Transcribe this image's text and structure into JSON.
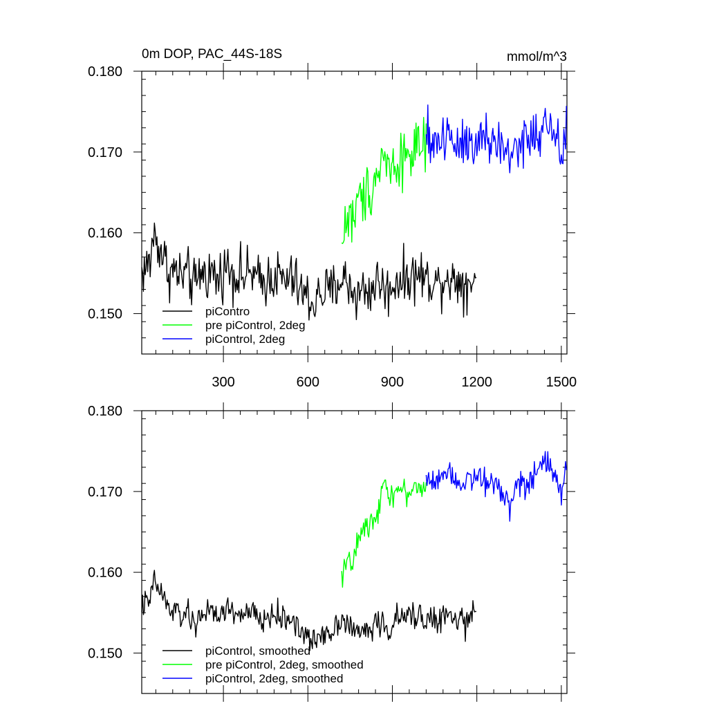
{
  "chart_data": [
    {
      "type": "line",
      "title": "0m DOP, PAC_44S-18S",
      "units": "mmol/m^3",
      "xlim": [
        10,
        1520
      ],
      "ylim": [
        0.145,
        0.18
      ],
      "x_ticks": [
        300,
        600,
        900,
        1200,
        1500
      ],
      "x_tick_labels": [
        "300",
        "600",
        "900",
        "1200",
        "1500"
      ],
      "y_ticks": [
        0.15,
        0.16,
        0.17,
        0.18
      ],
      "y_tick_labels": [
        "0.150",
        "0.160",
        "0.170",
        "0.180"
      ],
      "legend_position": "bottom-left",
      "series": [
        {
          "name": "piContro",
          "color": "#000000",
          "x_range": [
            10,
            1200
          ],
          "points": [
            [
              10,
              0.1552
            ],
            [
              40,
              0.1562
            ],
            [
              50,
              0.1598
            ],
            [
              70,
              0.1585
            ],
            [
              90,
              0.1568
            ],
            [
              110,
              0.155
            ],
            [
              130,
              0.1553
            ],
            [
              150,
              0.1545
            ],
            [
              170,
              0.155
            ],
            [
              190,
              0.1538
            ],
            [
              200,
              0.1532
            ],
            [
              220,
              0.1553
            ],
            [
              240,
              0.1548
            ],
            [
              260,
              0.1552
            ],
            [
              280,
              0.154
            ],
            [
              300,
              0.1555
            ],
            [
              320,
              0.1558
            ],
            [
              340,
              0.1548
            ],
            [
              360,
              0.155
            ],
            [
              380,
              0.1545
            ],
            [
              400,
              0.1552
            ],
            [
              420,
              0.154
            ],
            [
              440,
              0.1538
            ],
            [
              460,
              0.1545
            ],
            [
              480,
              0.1548
            ],
            [
              500,
              0.1545
            ],
            [
              520,
              0.1538
            ],
            [
              540,
              0.1545
            ],
            [
              560,
              0.1535
            ],
            [
              580,
              0.1525
            ],
            [
              600,
              0.152
            ],
            [
              620,
              0.1512
            ],
            [
              640,
              0.1522
            ],
            [
              660,
              0.1528
            ],
            [
              680,
              0.1525
            ],
            [
              700,
              0.1535
            ],
            [
              720,
              0.1545
            ],
            [
              740,
              0.1538
            ],
            [
              760,
              0.1528
            ],
            [
              780,
              0.1522
            ],
            [
              800,
              0.1532
            ],
            [
              820,
              0.1525
            ],
            [
              840,
              0.154
            ],
            [
              860,
              0.1538
            ],
            [
              880,
              0.1525
            ],
            [
              900,
              0.1535
            ],
            [
              920,
              0.1545
            ],
            [
              940,
              0.154
            ],
            [
              960,
              0.1548
            ],
            [
              980,
              0.1545
            ],
            [
              1000,
              0.155
            ],
            [
              1020,
              0.154
            ],
            [
              1040,
              0.1545
            ],
            [
              1060,
              0.1535
            ],
            [
              1080,
              0.1545
            ],
            [
              1100,
              0.1548
            ],
            [
              1120,
              0.1538
            ],
            [
              1140,
              0.1545
            ],
            [
              1160,
              0.1535
            ],
            [
              1180,
              0.1542
            ],
            [
              1200,
              0.1548
            ]
          ],
          "noise": 0.0028
        },
        {
          "name": "pre piControl, 2deg",
          "color": "#00ff00",
          "x_range": [
            720,
            1020
          ],
          "points": [
            [
              720,
              0.158
            ],
            [
              730,
              0.161
            ],
            [
              745,
              0.162
            ],
            [
              760,
              0.1615
            ],
            [
              775,
              0.1635
            ],
            [
              790,
              0.1642
            ],
            [
              810,
              0.1652
            ],
            [
              830,
              0.1662
            ],
            [
              850,
              0.1675
            ],
            [
              865,
              0.17
            ],
            [
              880,
              0.1685
            ],
            [
              900,
              0.168
            ],
            [
              920,
              0.169
            ],
            [
              940,
              0.1695
            ],
            [
              960,
              0.17
            ],
            [
              980,
              0.1705
            ],
            [
              1000,
              0.17
            ],
            [
              1020,
              0.1705
            ]
          ],
          "noise": 0.003
        },
        {
          "name": "piControl, 2deg",
          "color": "#0000ff",
          "x_range": [
            1020,
            1520
          ],
          "points": [
            [
              1020,
              0.1712
            ],
            [
              1060,
              0.1715
            ],
            [
              1100,
              0.172
            ],
            [
              1140,
              0.1712
            ],
            [
              1180,
              0.172
            ],
            [
              1220,
              0.1712
            ],
            [
              1260,
              0.1715
            ],
            [
              1300,
              0.17
            ],
            [
              1320,
              0.1695
            ],
            [
              1340,
              0.1712
            ],
            [
              1380,
              0.1712
            ],
            [
              1420,
              0.1722
            ],
            [
              1450,
              0.1735
            ],
            [
              1480,
              0.1708
            ],
            [
              1500,
              0.17
            ],
            [
              1520,
              0.1725
            ]
          ],
          "noise": 0.0032
        }
      ]
    },
    {
      "type": "line",
      "xlim": [
        10,
        1520
      ],
      "ylim": [
        0.145,
        0.18
      ],
      "x_ticks": [
        300,
        600,
        900,
        1200,
        1500
      ],
      "y_ticks": [
        0.15,
        0.16,
        0.17,
        0.18
      ],
      "y_tick_labels": [
        "0.150",
        "0.160",
        "0.170",
        "0.180"
      ],
      "legend_position": "bottom-left",
      "series": [
        {
          "name": "piControl, smoothed",
          "color": "#000000",
          "x_range": [
            10,
            1200
          ],
          "points": [
            [
              10,
              0.156
            ],
            [
              40,
              0.1562
            ],
            [
              50,
              0.159
            ],
            [
              70,
              0.158
            ],
            [
              90,
              0.1568
            ],
            [
              110,
              0.155
            ],
            [
              130,
              0.1553
            ],
            [
              150,
              0.1545
            ],
            [
              170,
              0.155
            ],
            [
              190,
              0.1538
            ],
            [
              200,
              0.153
            ],
            [
              220,
              0.1553
            ],
            [
              240,
              0.1548
            ],
            [
              260,
              0.1552
            ],
            [
              280,
              0.154
            ],
            [
              300,
              0.1555
            ],
            [
              320,
              0.1555
            ],
            [
              340,
              0.1548
            ],
            [
              360,
              0.155
            ],
            [
              380,
              0.1545
            ],
            [
              400,
              0.1552
            ],
            [
              420,
              0.1542
            ],
            [
              440,
              0.1538
            ],
            [
              460,
              0.1545
            ],
            [
              480,
              0.1548
            ],
            [
              500,
              0.1545
            ],
            [
              520,
              0.154
            ],
            [
              540,
              0.1545
            ],
            [
              560,
              0.1535
            ],
            [
              580,
              0.1525
            ],
            [
              600,
              0.1518
            ],
            [
              620,
              0.1512
            ],
            [
              640,
              0.1522
            ],
            [
              660,
              0.1528
            ],
            [
              680,
              0.1525
            ],
            [
              700,
              0.1535
            ],
            [
              720,
              0.1545
            ],
            [
              740,
              0.1538
            ],
            [
              760,
              0.1528
            ],
            [
              780,
              0.1522
            ],
            [
              800,
              0.1532
            ],
            [
              820,
              0.1525
            ],
            [
              840,
              0.154
            ],
            [
              860,
              0.1538
            ],
            [
              880,
              0.1525
            ],
            [
              900,
              0.1535
            ],
            [
              920,
              0.1545
            ],
            [
              940,
              0.154
            ],
            [
              960,
              0.1548
            ],
            [
              980,
              0.1545
            ],
            [
              1000,
              0.155
            ],
            [
              1020,
              0.154
            ],
            [
              1040,
              0.1545
            ],
            [
              1060,
              0.1535
            ],
            [
              1080,
              0.1545
            ],
            [
              1100,
              0.1548
            ],
            [
              1120,
              0.1538
            ],
            [
              1140,
              0.1545
            ],
            [
              1160,
              0.1535
            ],
            [
              1180,
              0.1542
            ],
            [
              1200,
              0.1552
            ]
          ],
          "noise": 0.0014
        },
        {
          "name": "pre piControl, 2deg, smoothed",
          "color": "#00ff00",
          "x_range": [
            720,
            1020
          ],
          "points": [
            [
              720,
              0.1595
            ],
            [
              730,
              0.161
            ],
            [
              745,
              0.1625
            ],
            [
              760,
              0.1598
            ],
            [
              775,
              0.164
            ],
            [
              790,
              0.165
            ],
            [
              810,
              0.1655
            ],
            [
              830,
              0.1665
            ],
            [
              850,
              0.168
            ],
            [
              870,
              0.1715
            ],
            [
              890,
              0.1695
            ],
            [
              910,
              0.17
            ],
            [
              930,
              0.1705
            ],
            [
              950,
              0.1695
            ],
            [
              970,
              0.1705
            ],
            [
              990,
              0.1705
            ],
            [
              1000,
              0.17
            ],
            [
              1020,
              0.1708
            ]
          ],
          "noise": 0.0012
        },
        {
          "name": "piControl, 2deg, smoothed",
          "color": "#0000ff",
          "x_range": [
            1020,
            1520
          ],
          "points": [
            [
              1020,
              0.1712
            ],
            [
              1060,
              0.1718
            ],
            [
              1100,
              0.1725
            ],
            [
              1140,
              0.1712
            ],
            [
              1180,
              0.172
            ],
            [
              1220,
              0.1712
            ],
            [
              1260,
              0.1712
            ],
            [
              1300,
              0.17
            ],
            [
              1320,
              0.168
            ],
            [
              1340,
              0.1712
            ],
            [
              1380,
              0.1712
            ],
            [
              1420,
              0.1722
            ],
            [
              1450,
              0.174
            ],
            [
              1480,
              0.1715
            ],
            [
              1500,
              0.17
            ],
            [
              1520,
              0.1738
            ]
          ],
          "noise": 0.0014
        }
      ]
    }
  ]
}
